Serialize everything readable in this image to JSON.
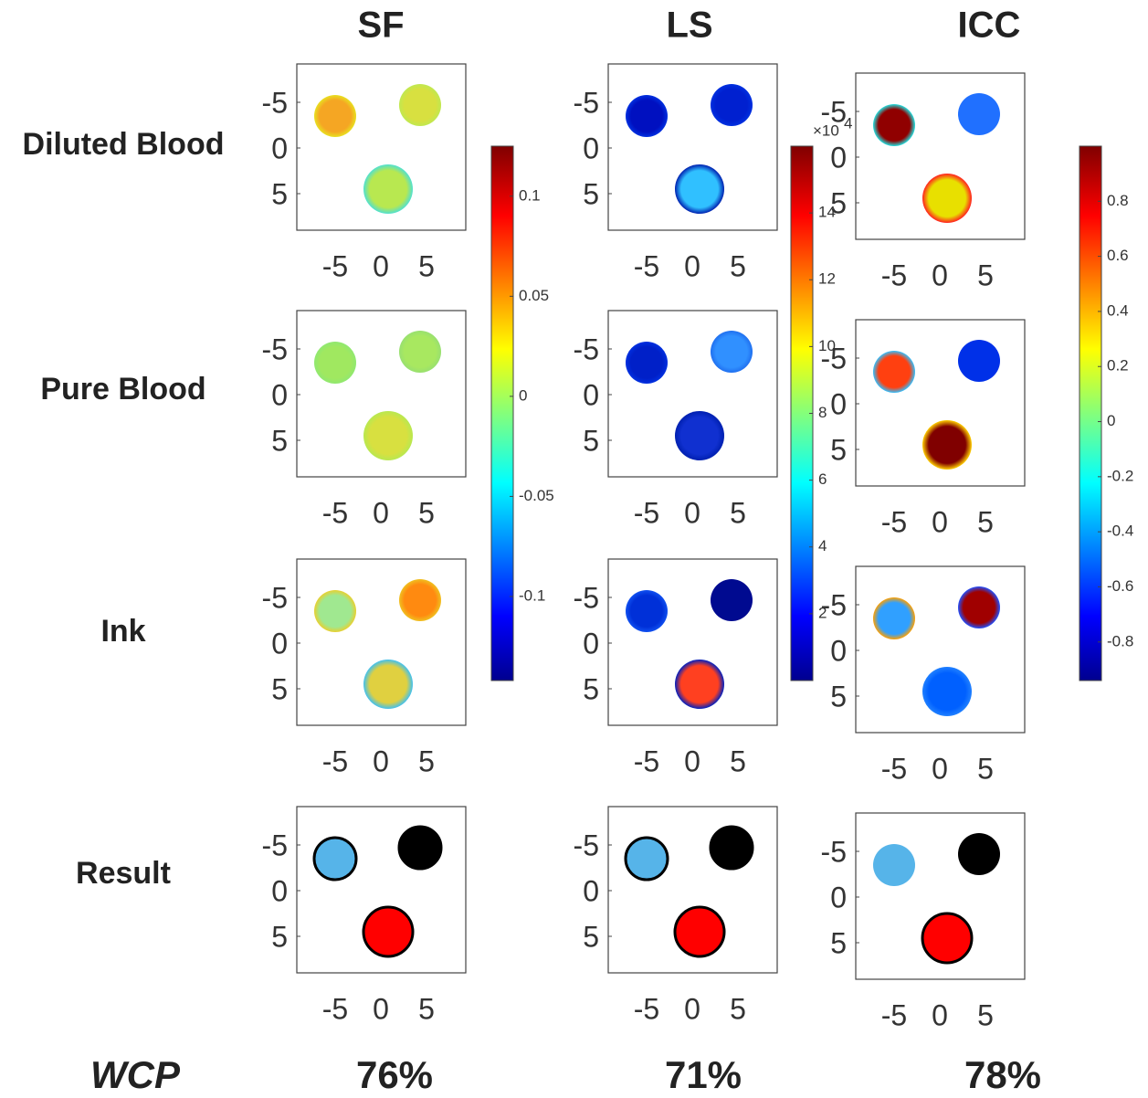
{
  "columns": [
    {
      "title": "SF",
      "colorbar": {
        "lim": [
          -0.142,
          0.125
        ],
        "ticks": [
          0.1,
          0.05,
          0,
          -0.05,
          -0.1
        ]
      }
    },
    {
      "title": "LS",
      "colorbar": {
        "lim": [
          0,
          16
        ],
        "ticks": [
          14,
          12,
          10,
          8,
          6,
          4,
          2
        ],
        "multiplier": {
          "base": "×10",
          "exponent": "4"
        }
      }
    },
    {
      "title": "ICC",
      "colorbar": {
        "lim": [
          -0.94,
          1
        ],
        "ticks": [
          0.8,
          0.6,
          0.4,
          0.2,
          0,
          -0.2,
          -0.4,
          -0.6,
          -0.8
        ]
      }
    }
  ],
  "rows": [
    "Diluted Blood",
    "Pure Blood",
    "Ink",
    "Result"
  ],
  "axis_ticks": [
    -5,
    0,
    5
  ],
  "wcp": {
    "label": "WCP",
    "values": [
      "76%",
      "71%",
      "78%"
    ]
  }
}
